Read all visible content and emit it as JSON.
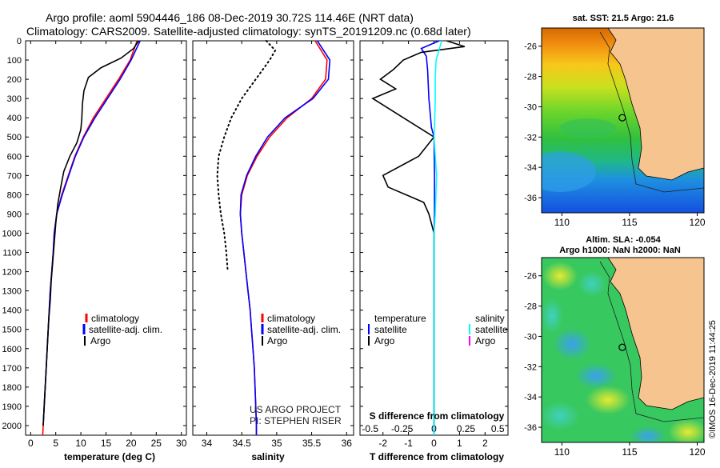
{
  "title_line1": "Argo profile: aoml 5904446_186 08-Dec-2019 30.72S 114.46E (NRT data)",
  "title_line2": "Climatology: CARS2009. Satellite-adjusted climatology: synTS_20191209.nc (0.68d later)",
  "credit_line1": "US ARGO PROJECT",
  "credit_line2": "PI: STEPHEN RISER",
  "imos_stamp": "©IMOS 16-Dec-2019 11:44:25",
  "colors": {
    "climatology": "#ff0000",
    "satellite": "#0000ff",
    "argo": "#000000",
    "sat_salinity": "#00ffff",
    "argo_salinity": "#ff00ff",
    "land": "#f6c48f"
  },
  "chart_data": [
    {
      "type": "line",
      "id": "temperature",
      "xlabel": "temperature (deg C)",
      "xlim": [
        -1,
        31
      ],
      "ylim": [
        0,
        2050
      ],
      "x_ticks": [
        0,
        5,
        10,
        15,
        20,
        25,
        30
      ],
      "x_tick_labels": [
        "0",
        "5",
        "10",
        "15",
        "20",
        "25",
        "30"
      ],
      "y_ticks": [
        0,
        100,
        200,
        300,
        400,
        500,
        600,
        700,
        800,
        900,
        1000,
        1100,
        1200,
        1300,
        1400,
        1500,
        1600,
        1700,
        1800,
        1900,
        2000
      ],
      "y_tick_labels": [
        "0",
        "100",
        "200",
        "300",
        "400",
        "500",
        "600",
        "700",
        "800",
        "900",
        "1000",
        "1100",
        "1200",
        "1300",
        "1400",
        "1500",
        "1600",
        "1700",
        "1800",
        "1900",
        "2000"
      ],
      "legend": [
        "climatology",
        "satellite-adj. clim.",
        "Argo"
      ],
      "series": [
        {
          "name": "climatology",
          "color": "#ff0000",
          "style": "solid",
          "points": [
            [
              21.2,
              0
            ],
            [
              19.8,
              100
            ],
            [
              17.5,
              200
            ],
            [
              15.0,
              300
            ],
            [
              12.5,
              400
            ],
            [
              10.5,
              500
            ],
            [
              8.8,
              600
            ],
            [
              7.5,
              700
            ],
            [
              6.2,
              800
            ],
            [
              5.2,
              900
            ],
            [
              4.7,
              1000
            ],
            [
              4.5,
              1100
            ],
            [
              4.2,
              1200
            ],
            [
              3.9,
              1300
            ],
            [
              3.7,
              1400
            ],
            [
              3.5,
              1500
            ],
            [
              3.3,
              1600
            ],
            [
              3.1,
              1700
            ],
            [
              2.9,
              1800
            ],
            [
              2.7,
              1900
            ],
            [
              2.5,
              2000
            ],
            [
              2.4,
              2050
            ]
          ]
        },
        {
          "name": "satellite-adj. clim.",
          "color": "#0000ff",
          "style": "solid",
          "points": [
            [
              21.8,
              0
            ],
            [
              20.0,
              100
            ],
            [
              17.8,
              200
            ],
            [
              15.3,
              300
            ],
            [
              12.8,
              400
            ],
            [
              10.6,
              500
            ],
            [
              8.9,
              600
            ],
            [
              7.6,
              700
            ],
            [
              6.3,
              800
            ],
            [
              5.2,
              900
            ],
            [
              4.7,
              1000
            ],
            [
              4.5,
              1100
            ],
            [
              4.2,
              1200
            ],
            [
              3.9,
              1300
            ],
            [
              3.7,
              1400
            ],
            [
              3.5,
              1500
            ],
            [
              3.3,
              1600
            ],
            [
              3.1,
              1700
            ],
            [
              2.9,
              1800
            ],
            [
              2.7,
              1900
            ],
            [
              2.5,
              2000
            ]
          ]
        },
        {
          "name": "Argo",
          "color": "#000000",
          "style": "solid",
          "points": [
            [
              21.5,
              0
            ],
            [
              20.5,
              40
            ],
            [
              18.0,
              90
            ],
            [
              14.0,
              140
            ],
            [
              11.5,
              190
            ],
            [
              10.6,
              260
            ],
            [
              10.3,
              330
            ],
            [
              10.2,
              400
            ],
            [
              10.0,
              460
            ],
            [
              9.2,
              530
            ],
            [
              7.8,
              600
            ],
            [
              6.6,
              680
            ],
            [
              6.0,
              760
            ],
            [
              5.4,
              850
            ],
            [
              5.0,
              950
            ],
            [
              4.7,
              1050
            ],
            [
              4.4,
              1150
            ],
            [
              4.1,
              1250
            ],
            [
              3.9,
              1350
            ],
            [
              3.6,
              1450
            ],
            [
              3.4,
              1550
            ],
            [
              3.2,
              1650
            ],
            [
              3.0,
              1750
            ],
            [
              2.8,
              1850
            ],
            [
              2.6,
              1950
            ],
            [
              2.5,
              2000
            ]
          ]
        }
      ]
    },
    {
      "type": "line",
      "id": "salinity",
      "xlabel": "salinity",
      "xlim": [
        33.8,
        36.1
      ],
      "ylim": [
        0,
        2050
      ],
      "x_ticks": [
        34,
        34.5,
        35,
        35.5,
        36
      ],
      "x_tick_labels": [
        "34",
        "34.5",
        "35",
        "35.5",
        "36"
      ],
      "legend": [
        "climatology",
        "satellite-adj. clim.",
        "Argo"
      ],
      "series": [
        {
          "name": "climatology",
          "color": "#ff0000",
          "style": "solid",
          "points": [
            [
              35.55,
              0
            ],
            [
              35.72,
              100
            ],
            [
              35.7,
              200
            ],
            [
              35.5,
              300
            ],
            [
              35.15,
              400
            ],
            [
              34.9,
              500
            ],
            [
              34.72,
              600
            ],
            [
              34.58,
              700
            ],
            [
              34.5,
              800
            ],
            [
              34.48,
              900
            ],
            [
              34.5,
              1000
            ],
            [
              34.53,
              1100
            ],
            [
              34.56,
              1200
            ],
            [
              34.59,
              1300
            ],
            [
              34.62,
              1400
            ],
            [
              34.64,
              1500
            ],
            [
              34.66,
              1600
            ],
            [
              34.68,
              1700
            ],
            [
              34.69,
              1800
            ],
            [
              34.7,
              1900
            ],
            [
              34.71,
              2000
            ],
            [
              34.71,
              2050
            ]
          ]
        },
        {
          "name": "satellite-adj. clim.",
          "color": "#0000ff",
          "style": "solid",
          "points": [
            [
              35.58,
              0
            ],
            [
              35.76,
              100
            ],
            [
              35.74,
              200
            ],
            [
              35.52,
              300
            ],
            [
              35.12,
              400
            ],
            [
              34.87,
              500
            ],
            [
              34.7,
              600
            ],
            [
              34.57,
              700
            ],
            [
              34.49,
              800
            ],
            [
              34.48,
              900
            ],
            [
              34.5,
              1000
            ],
            [
              34.53,
              1100
            ],
            [
              34.56,
              1200
            ],
            [
              34.59,
              1300
            ],
            [
              34.62,
              1400
            ],
            [
              34.64,
              1500
            ],
            [
              34.66,
              1600
            ],
            [
              34.68,
              1700
            ],
            [
              34.69,
              1800
            ],
            [
              34.7,
              1900
            ],
            [
              34.71,
              2000
            ],
            [
              34.71,
              2050
            ]
          ]
        },
        {
          "name": "Argo",
          "color": "#000000",
          "style": "dotted",
          "points": [
            [
              34.85,
              0
            ],
            [
              34.98,
              50
            ],
            [
              34.9,
              100
            ],
            [
              34.7,
              200
            ],
            [
              34.5,
              300
            ],
            [
              34.35,
              400
            ],
            [
              34.25,
              500
            ],
            [
              34.17,
              600
            ],
            [
              34.15,
              700
            ],
            [
              34.17,
              800
            ],
            [
              34.2,
              900
            ],
            [
              34.25,
              1000
            ],
            [
              34.28,
              1100
            ],
            [
              34.3,
              1200
            ]
          ]
        }
      ]
    },
    {
      "type": "line",
      "id": "difference",
      "xlabel": "T difference from climatology",
      "x2label": "S difference from climatology",
      "xlim": [
        -2.9,
        2.9
      ],
      "ylim": [
        0,
        2050
      ],
      "x_ticks": [
        -2,
        -1,
        0,
        1,
        2
      ],
      "x_tick_labels": [
        "-2",
        "-1",
        "0",
        "1",
        "2"
      ],
      "x2_ticks": [
        -0.5,
        -0.25,
        0,
        0.25,
        0.5
      ],
      "x2_tick_labels": [
        "-0.5",
        "-0.25",
        "0",
        "0.25",
        "0.5"
      ],
      "legend_left_title": "temperature",
      "legend_left": [
        "satellite",
        "Argo"
      ],
      "legend_right_title": "salinity",
      "legend_right": [
        "satellite",
        "Argo"
      ],
      "series": [
        {
          "name": "T satellite",
          "color": "#0000ff",
          "style": "solid",
          "points": [
            [
              0.2,
              0
            ],
            [
              -0.5,
              40
            ],
            [
              -0.3,
              80
            ],
            [
              -0.25,
              150
            ],
            [
              -0.2,
              300
            ],
            [
              -0.1,
              450
            ],
            [
              0,
              500
            ],
            [
              0.02,
              700
            ],
            [
              0.02,
              900
            ],
            [
              0,
              1000
            ],
            [
              0,
              1100
            ],
            [
              0,
              1500
            ],
            [
              0,
              2050
            ]
          ]
        },
        {
          "name": "T Argo",
          "color": "#000000",
          "style": "solid",
          "points": [
            [
              0.5,
              0
            ],
            [
              1.2,
              30
            ],
            [
              -0.5,
              60
            ],
            [
              -1.2,
              100
            ],
            [
              -1.6,
              150
            ],
            [
              -2.1,
              200
            ],
            [
              -1.5,
              250
            ],
            [
              -2.4,
              300
            ],
            [
              -1.2,
              400
            ],
            [
              0,
              500
            ],
            [
              -0.6,
              600
            ],
            [
              -2.0,
              700
            ],
            [
              -1.8,
              760
            ],
            [
              -0.4,
              840
            ],
            [
              -0.2,
              900
            ],
            [
              0,
              1000
            ],
            [
              0,
              2000
            ]
          ]
        },
        {
          "name": "S satellite",
          "color": "#00ffff",
          "style": "solid",
          "points": [
            [
              0.3,
              0
            ],
            [
              0.08,
              100
            ],
            [
              0.05,
              200
            ],
            [
              0.05,
              300
            ],
            [
              0.03,
              400
            ],
            [
              0,
              500
            ],
            [
              0.1,
              700
            ],
            [
              0.05,
              900
            ],
            [
              0,
              1000
            ],
            [
              0,
              1100
            ],
            [
              0,
              1500
            ],
            [
              0,
              2050
            ]
          ]
        }
      ]
    },
    {
      "type": "heatmap",
      "id": "sst_map",
      "title": "sat. SST: 21.5 Argo: 21.6",
      "xlim": [
        108.5,
        120.5
      ],
      "ylim": [
        -37,
        -24.8
      ],
      "x_ticks": [
        110,
        115,
        120
      ],
      "x_tick_labels": [
        "110",
        "115",
        "120"
      ],
      "y_ticks": [
        -26,
        -28,
        -30,
        -32,
        -34,
        -36
      ],
      "y_tick_labels": [
        "-26",
        "-28",
        "-30",
        "-32",
        "-34",
        "-36"
      ],
      "profile_marker": [
        114.46,
        -30.72
      ]
    },
    {
      "type": "heatmap",
      "id": "sla_map",
      "title": "Altim. SLA: -0.054",
      "subtitle": "Argo h1000: NaN h2000: NaN",
      "xlim": [
        108.5,
        120.5
      ],
      "ylim": [
        -37,
        -24.8
      ],
      "x_ticks": [
        110,
        115,
        120
      ],
      "x_tick_labels": [
        "110",
        "115",
        "120"
      ],
      "y_ticks": [
        -26,
        -28,
        -30,
        -32,
        -34,
        -36
      ],
      "y_tick_labels": [
        "-26",
        "-28",
        "-30",
        "-32",
        "-34",
        "-36"
      ],
      "profile_marker": [
        114.46,
        -30.72
      ]
    }
  ]
}
